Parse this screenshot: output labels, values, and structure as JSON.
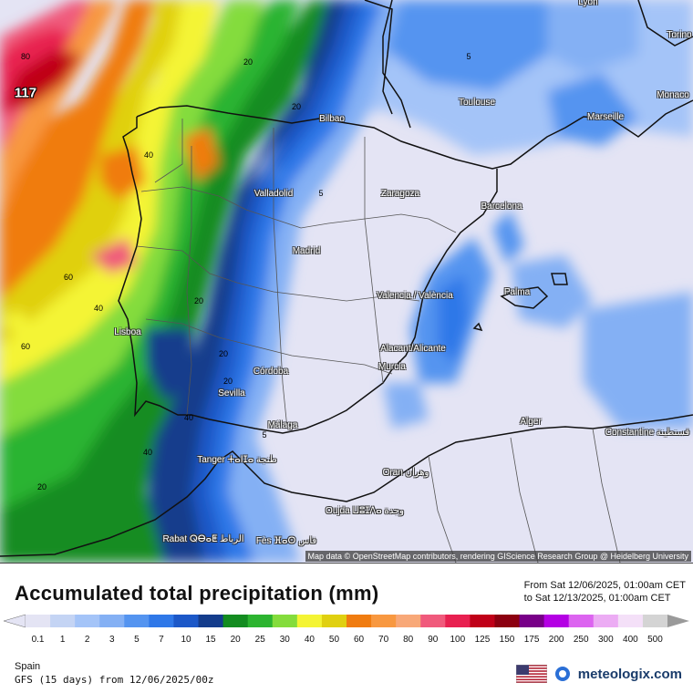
{
  "map": {
    "region": "Iberian Peninsula / Western Mediterranean",
    "attribution": "Map data © OpenStreetMap contributors, rendering GIScience Research Group @ Heidelberg University",
    "max_value": "117",
    "cities": [
      {
        "name": "Lyon"
      },
      {
        "name": "Torino"
      },
      {
        "name": "Monaco"
      },
      {
        "name": "Bilbao"
      },
      {
        "name": "Toulouse"
      },
      {
        "name": "Marseille"
      },
      {
        "name": "Valladolid"
      },
      {
        "name": "Zaragoza"
      },
      {
        "name": "Barcelona"
      },
      {
        "name": "Madrid"
      },
      {
        "name": "Valencia / València"
      },
      {
        "name": "Palma"
      },
      {
        "name": "Lisboa"
      },
      {
        "name": "Alacant/Alicante"
      },
      {
        "name": "Murcia"
      },
      {
        "name": "Córdoba"
      },
      {
        "name": "Sevilla"
      },
      {
        "name": "Málaga"
      },
      {
        "name": "Alger"
      },
      {
        "name": "Constantine قسنطينة"
      },
      {
        "name": "Tanger ⵜⴰⵏⵊⴰ طنجة"
      },
      {
        "name": "Oran وهران"
      },
      {
        "name": "Oujda ⵡⵓⵊⴷⴰ وجدة"
      },
      {
        "name": "Rabat ⵕⴱⴰⵟ الرباط"
      },
      {
        "name": "Fès ⴼⴰⵙ فاس"
      }
    ],
    "contour_labels": [
      "80",
      "60",
      "40",
      "40",
      "60",
      "40",
      "20",
      "20",
      "20",
      "20",
      "40",
      "20",
      "20",
      "5",
      "5",
      "5"
    ]
  },
  "legend": {
    "title": "Accumulated total precipitation (mm)",
    "from": "From Sat 12/06/2025, 01:00am CET",
    "to": "to Sat 12/13/2025, 01:00am CET",
    "scale": [
      {
        "label": "0.1",
        "color": "#e4e4f4"
      },
      {
        "label": "1",
        "color": "#c4d4f4"
      },
      {
        "label": "2",
        "color": "#a4c4f8"
      },
      {
        "label": "3",
        "color": "#84b0f4"
      },
      {
        "label": "5",
        "color": "#5494f0"
      },
      {
        "label": "7",
        "color": "#2f78e8"
      },
      {
        "label": "10",
        "color": "#1c58c8"
      },
      {
        "label": "15",
        "color": "#143c8c"
      },
      {
        "label": "20",
        "color": "#138c20"
      },
      {
        "label": "25",
        "color": "#2cb430"
      },
      {
        "label": "30",
        "color": "#84dc3c"
      },
      {
        "label": "40",
        "color": "#f4f434"
      },
      {
        "label": "50",
        "color": "#e0d010"
      },
      {
        "label": "60",
        "color": "#f07c10"
      },
      {
        "label": "70",
        "color": "#f89840"
      },
      {
        "label": "80",
        "color": "#f8a878"
      },
      {
        "label": "90",
        "color": "#f05a7c"
      },
      {
        "label": "100",
        "color": "#e82050"
      },
      {
        "label": "125",
        "color": "#c00018"
      },
      {
        "label": "150",
        "color": "#8c0010"
      },
      {
        "label": "175",
        "color": "#780088"
      },
      {
        "label": "200",
        "color": "#b400e4"
      },
      {
        "label": "250",
        "color": "#dc64f0"
      },
      {
        "label": "300",
        "color": "#ecacf4"
      },
      {
        "label": "400",
        "color": "#f4e0f8"
      },
      {
        "label": "500",
        "color": "#d4d4d4"
      }
    ],
    "region": "Spain",
    "model": "GFS (15 days) from 12/06/2025/00z"
  },
  "brand": {
    "name": "meteologix.com"
  }
}
